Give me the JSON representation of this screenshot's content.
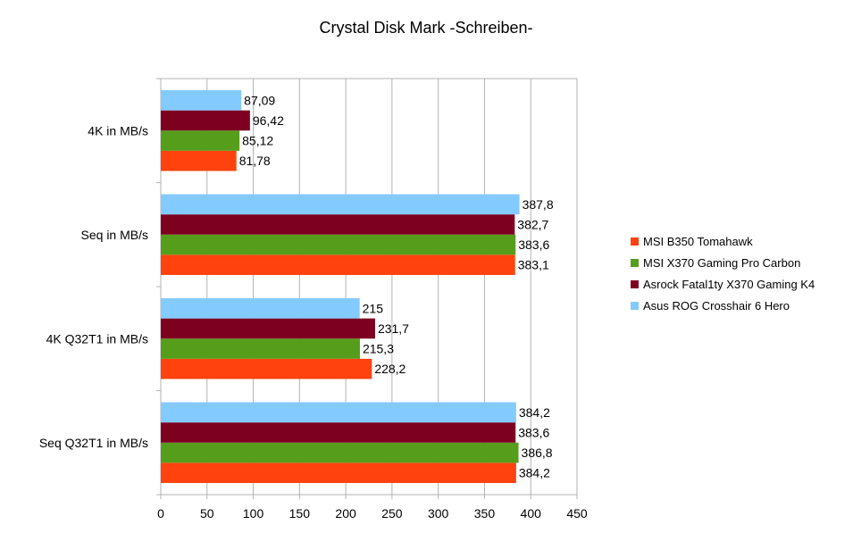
{
  "chart_data": {
    "type": "bar",
    "orientation": "horizontal",
    "title": "Crystal Disk Mark -Schreiben-",
    "xlabel": "",
    "ylabel": "",
    "xlim": [
      0,
      450
    ],
    "x_ticks": [
      0,
      50,
      100,
      150,
      200,
      250,
      300,
      350,
      400,
      450
    ],
    "grid": "vertical",
    "legend_position": "right",
    "categories": [
      "4K in MB/s",
      "Seq in MB/s",
      "4K Q32T1 in MB/s",
      "Seq Q32T1 in MB/s"
    ],
    "series": [
      {
        "name": "MSI B350 Tomahawk",
        "color": "#ff420e",
        "values": [
          81.78,
          383.1,
          228.2,
          384.2
        ],
        "labels": [
          "81,78",
          "383,1",
          "228,2",
          "384,2"
        ]
      },
      {
        "name": "MSI X370 Gaming Pro Carbon",
        "color": "#579d1c",
        "values": [
          85.12,
          383.6,
          215.3,
          386.8
        ],
        "labels": [
          "85,12",
          "383,6",
          "215,3",
          "386,8"
        ]
      },
      {
        "name": "Asrock Fatal1ty X370 Gaming K4",
        "color": "#7e0021",
        "values": [
          96.42,
          382.7,
          231.7,
          383.6
        ],
        "labels": [
          "96,42",
          "382,7",
          "231,7",
          "383,6"
        ]
      },
      {
        "name": "Asus ROG Crosshair 6 Hero",
        "color": "#83caff",
        "values": [
          87.09,
          387.8,
          215,
          384.2
        ],
        "labels": [
          "87,09",
          "387,8",
          "215",
          "384,2"
        ]
      }
    ]
  }
}
